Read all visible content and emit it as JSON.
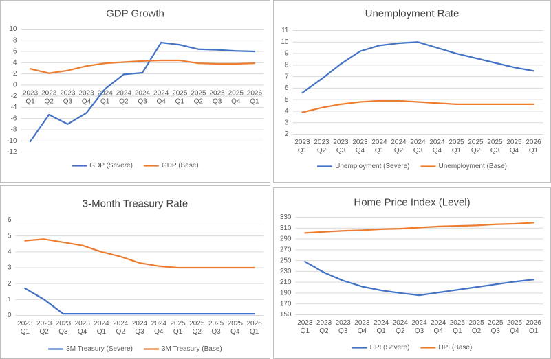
{
  "chart_data": [
    {
      "type": "line",
      "title": "GDP Growth",
      "categories": [
        [
          "2023",
          "Q1"
        ],
        [
          "2023",
          "Q2"
        ],
        [
          "2023",
          "Q3"
        ],
        [
          "2023",
          "Q4"
        ],
        [
          "2024",
          "Q1"
        ],
        [
          "2024",
          "Q2"
        ],
        [
          "2024",
          "Q3"
        ],
        [
          "2024",
          "Q4"
        ],
        [
          "2025",
          "Q1"
        ],
        [
          "2025",
          "Q2"
        ],
        [
          "2025",
          "Q3"
        ],
        [
          "2025",
          "Q4"
        ],
        [
          "2026",
          "Q1"
        ]
      ],
      "series": [
        {
          "name": "GDP (Severe)",
          "color": "#4472c4",
          "values": [
            -10.1,
            -5.3,
            -7.0,
            -5.0,
            -0.7,
            1.9,
            2.2,
            7.6,
            7.2,
            6.4,
            6.3,
            6.1,
            6.0
          ]
        },
        {
          "name": "GDP (Base)",
          "color": "#ed7d31",
          "values": [
            2.9,
            2.1,
            2.6,
            3.4,
            3.9,
            4.1,
            4.3,
            4.4,
            4.4,
            3.9,
            3.8,
            3.8,
            3.9
          ]
        }
      ],
      "ylim": [
        -12,
        10
      ],
      "yticks": [
        -12,
        -10,
        -8,
        -6,
        -4,
        -2,
        0,
        2,
        4,
        6,
        8,
        10
      ],
      "grid": true,
      "legend": "bottom"
    },
    {
      "type": "line",
      "title": "Unemployment Rate",
      "categories": [
        [
          "2023",
          "Q1"
        ],
        [
          "2023",
          "Q2"
        ],
        [
          "2023",
          "Q3"
        ],
        [
          "2023",
          "Q4"
        ],
        [
          "2024",
          "Q1"
        ],
        [
          "2024",
          "Q2"
        ],
        [
          "2024",
          "Q3"
        ],
        [
          "2024",
          "Q4"
        ],
        [
          "2025",
          "Q1"
        ],
        [
          "2025",
          "Q2"
        ],
        [
          "2025",
          "Q3"
        ],
        [
          "2025",
          "Q4"
        ],
        [
          "2026",
          "Q1"
        ]
      ],
      "series": [
        {
          "name": "Unemployment (Severe)",
          "color": "#4472c4",
          "values": [
            5.6,
            6.8,
            8.1,
            9.2,
            9.7,
            9.9,
            10.0,
            9.5,
            9.0,
            8.6,
            8.2,
            7.8,
            7.5
          ]
        },
        {
          "name": "Unemployment (Base)",
          "color": "#ed7d31",
          "values": [
            3.9,
            4.3,
            4.6,
            4.8,
            4.9,
            4.9,
            4.8,
            4.7,
            4.6,
            4.6,
            4.6,
            4.6,
            4.6
          ]
        }
      ],
      "ylim": [
        2,
        11
      ],
      "yticks": [
        2,
        3,
        4,
        5,
        6,
        7,
        8,
        9,
        10,
        11
      ],
      "grid": true,
      "legend": "bottom"
    },
    {
      "type": "line",
      "title": "3-Month Treasury Rate",
      "categories": [
        [
          "2023",
          "Q1"
        ],
        [
          "2023",
          "Q2"
        ],
        [
          "2023",
          "Q3"
        ],
        [
          "2023",
          "Q4"
        ],
        [
          "2024",
          "Q1"
        ],
        [
          "2024",
          "Q2"
        ],
        [
          "2024",
          "Q3"
        ],
        [
          "2024",
          "Q4"
        ],
        [
          "2025",
          "Q1"
        ],
        [
          "2025",
          "Q2"
        ],
        [
          "2025",
          "Q3"
        ],
        [
          "2025",
          "Q4"
        ],
        [
          "2026",
          "Q1"
        ]
      ],
      "series": [
        {
          "name": "3M Treasury (Severe)",
          "color": "#4472c4",
          "values": [
            1.7,
            1.0,
            0.1,
            0.1,
            0.1,
            0.1,
            0.1,
            0.1,
            0.1,
            0.1,
            0.1,
            0.1,
            0.1
          ]
        },
        {
          "name": "3M Treasury (Base)",
          "color": "#ed7d31",
          "values": [
            4.7,
            4.8,
            4.6,
            4.4,
            4.0,
            3.7,
            3.3,
            3.1,
            3.0,
            3.0,
            3.0,
            3.0,
            3.0
          ]
        }
      ],
      "ylim": [
        0,
        6
      ],
      "yticks": [
        0,
        1,
        2,
        3,
        4,
        5,
        6
      ],
      "grid": true,
      "legend": "bottom"
    },
    {
      "type": "line",
      "title": "Home Price Index (Level)",
      "categories": [
        [
          "2023",
          "Q1"
        ],
        [
          "2023",
          "Q2"
        ],
        [
          "2023",
          "Q3"
        ],
        [
          "2023",
          "Q4"
        ],
        [
          "2024",
          "Q1"
        ],
        [
          "2024",
          "Q2"
        ],
        [
          "2024",
          "Q3"
        ],
        [
          "2024",
          "Q4"
        ],
        [
          "2025",
          "Q1"
        ],
        [
          "2025",
          "Q2"
        ],
        [
          "2025",
          "Q3"
        ],
        [
          "2025",
          "Q4"
        ],
        [
          "2026",
          "Q1"
        ]
      ],
      "series": [
        {
          "name": "HPI (Severe)",
          "color": "#4472c4",
          "values": [
            248,
            228,
            213,
            202,
            195,
            190,
            186,
            191,
            196,
            201,
            206,
            211,
            215
          ]
        },
        {
          "name": "HPI (Base)",
          "color": "#ed7d31",
          "values": [
            301,
            303,
            305,
            306,
            308,
            309,
            311,
            313,
            314,
            315,
            317,
            318,
            320
          ]
        }
      ],
      "ylim": [
        150,
        330
      ],
      "yticks": [
        150,
        170,
        190,
        210,
        230,
        250,
        270,
        290,
        310,
        330
      ],
      "grid": true,
      "legend": "bottom"
    }
  ]
}
